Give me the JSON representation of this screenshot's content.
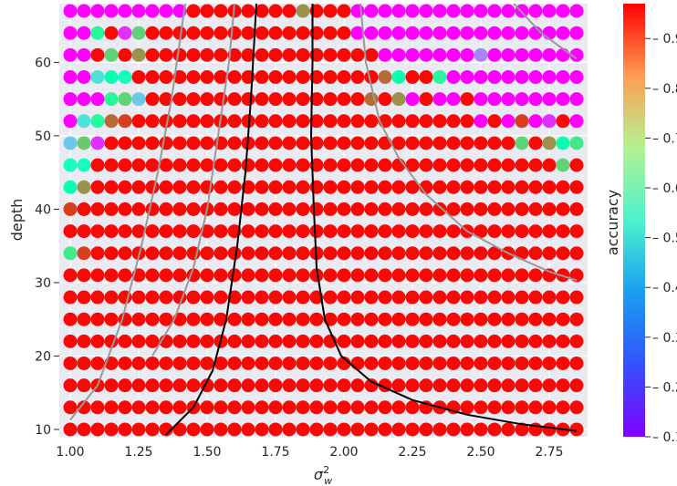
{
  "chart_data": {
    "type": "scatter",
    "title": "",
    "xlabel": "σ_w²",
    "xlabel_base": "σ",
    "xlabel_sup": "2",
    "xlabel_sub": "w",
    "ylabel": "depth",
    "colorbar_label": "accuracy",
    "xlim": [
      0.96,
      2.89
    ],
    "ylim": [
      9,
      68
    ],
    "grid": true,
    "x_ticks": [
      1.0,
      1.25,
      1.5,
      1.75,
      2.0,
      2.25,
      2.5,
      2.75
    ],
    "x_tick_labels": [
      "1.00",
      "1.25",
      "1.50",
      "1.75",
      "2.00",
      "2.25",
      "2.50",
      "2.75"
    ],
    "y_ticks": [
      10,
      20,
      30,
      40,
      50,
      60
    ],
    "y_tick_labels": [
      "10",
      "20",
      "30",
      "40",
      "50",
      "60"
    ],
    "colorbar_ticks": [
      0.1,
      0.2,
      0.3,
      0.4,
      0.5,
      0.6,
      0.7,
      0.8,
      0.9
    ],
    "colorbar_tick_labels": [
      "0.1",
      "0.2",
      "0.3",
      "0.4",
      "0.5",
      "0.6",
      "0.7",
      "0.8",
      "0.9"
    ],
    "colorbar_range": [
      0.1,
      0.97
    ],
    "colormap": "rainbow",
    "grid_x": [
      1.0,
      1.05,
      1.1,
      1.15,
      1.2,
      1.25,
      1.3,
      1.35,
      1.4,
      1.45,
      1.5,
      1.55,
      1.6,
      1.65,
      1.7,
      1.75,
      1.8,
      1.85,
      1.9,
      1.95,
      2.0,
      2.05,
      2.1,
      2.15,
      2.2,
      2.25,
      2.3,
      2.35,
      2.4,
      2.45,
      2.5,
      2.55,
      2.6,
      2.65,
      2.7,
      2.75,
      2.8,
      2.85
    ],
    "grid_depth": [
      10,
      13,
      16,
      19,
      22,
      25,
      28,
      31,
      34,
      37,
      40,
      43,
      46,
      49,
      52,
      55,
      58,
      61,
      64,
      67
    ],
    "accuracy_rows": [
      [
        0.96,
        0.96,
        0.96,
        0.96,
        0.96,
        0.96,
        0.96,
        0.96,
        0.96,
        0.96,
        0.96,
        0.96,
        0.96,
        0.96,
        0.96,
        0.96,
        0.96,
        0.96,
        0.96,
        0.96,
        0.96,
        0.96,
        0.96,
        0.96,
        0.96,
        0.96,
        0.96,
        0.96,
        0.96,
        0.96,
        0.96,
        0.96,
        0.96,
        0.96,
        0.96,
        0.96,
        0.96,
        0.96
      ],
      [
        0.96,
        0.96,
        0.96,
        0.96,
        0.96,
        0.96,
        0.96,
        0.96,
        0.96,
        0.96,
        0.96,
        0.96,
        0.96,
        0.96,
        0.96,
        0.96,
        0.96,
        0.96,
        0.96,
        0.96,
        0.96,
        0.96,
        0.96,
        0.96,
        0.96,
        0.96,
        0.96,
        0.96,
        0.96,
        0.96,
        0.96,
        0.96,
        0.96,
        0.96,
        0.96,
        0.96,
        0.96,
        0.96
      ],
      [
        0.96,
        0.96,
        0.96,
        0.96,
        0.96,
        0.96,
        0.96,
        0.96,
        0.96,
        0.96,
        0.96,
        0.96,
        0.96,
        0.96,
        0.96,
        0.96,
        0.96,
        0.96,
        0.96,
        0.96,
        0.96,
        0.96,
        0.96,
        0.96,
        0.96,
        0.96,
        0.96,
        0.96,
        0.96,
        0.96,
        0.96,
        0.96,
        0.96,
        0.96,
        0.96,
        0.96,
        0.96,
        0.96
      ],
      [
        0.96,
        0.96,
        0.96,
        0.96,
        0.96,
        0.96,
        0.96,
        0.96,
        0.96,
        0.96,
        0.96,
        0.96,
        0.96,
        0.96,
        0.96,
        0.96,
        0.96,
        0.96,
        0.96,
        0.96,
        0.96,
        0.96,
        0.96,
        0.96,
        0.96,
        0.96,
        0.96,
        0.96,
        0.96,
        0.96,
        0.96,
        0.96,
        0.96,
        0.96,
        0.96,
        0.96,
        0.96,
        0.96
      ],
      [
        0.96,
        0.96,
        0.96,
        0.96,
        0.96,
        0.96,
        0.96,
        0.96,
        0.96,
        0.96,
        0.96,
        0.96,
        0.96,
        0.96,
        0.96,
        0.96,
        0.96,
        0.96,
        0.96,
        0.96,
        0.96,
        0.96,
        0.96,
        0.96,
        0.96,
        0.96,
        0.96,
        0.96,
        0.96,
        0.96,
        0.96,
        0.96,
        0.96,
        0.96,
        0.96,
        0.96,
        0.96,
        0.96
      ],
      [
        0.96,
        0.96,
        0.96,
        0.96,
        0.96,
        0.96,
        0.96,
        0.96,
        0.96,
        0.96,
        0.96,
        0.96,
        0.96,
        0.96,
        0.96,
        0.96,
        0.96,
        0.96,
        0.96,
        0.96,
        0.96,
        0.96,
        0.96,
        0.96,
        0.96,
        0.96,
        0.96,
        0.96,
        0.96,
        0.96,
        0.96,
        0.96,
        0.96,
        0.96,
        0.96,
        0.96,
        0.96,
        0.96
      ],
      [
        0.96,
        0.96,
        0.96,
        0.96,
        0.96,
        0.96,
        0.96,
        0.96,
        0.96,
        0.96,
        0.96,
        0.96,
        0.96,
        0.96,
        0.96,
        0.96,
        0.96,
        0.96,
        0.96,
        0.96,
        0.96,
        0.96,
        0.96,
        0.96,
        0.96,
        0.96,
        0.96,
        0.96,
        0.96,
        0.96,
        0.96,
        0.96,
        0.96,
        0.96,
        0.96,
        0.96,
        0.96,
        0.96
      ],
      [
        0.96,
        0.96,
        0.96,
        0.96,
        0.96,
        0.96,
        0.96,
        0.96,
        0.96,
        0.96,
        0.96,
        0.96,
        0.96,
        0.96,
        0.96,
        0.96,
        0.96,
        0.96,
        0.96,
        0.96,
        0.96,
        0.96,
        0.96,
        0.96,
        0.96,
        0.96,
        0.96,
        0.96,
        0.96,
        0.96,
        0.96,
        0.96,
        0.96,
        0.96,
        0.96,
        0.96,
        0.96,
        0.96
      ],
      [
        0.65,
        0.9,
        0.96,
        0.96,
        0.96,
        0.96,
        0.96,
        0.96,
        0.96,
        0.96,
        0.96,
        0.96,
        0.96,
        0.96,
        0.96,
        0.96,
        0.96,
        0.96,
        0.96,
        0.96,
        0.96,
        0.96,
        0.96,
        0.96,
        0.96,
        0.96,
        0.96,
        0.96,
        0.96,
        0.96,
        0.96,
        0.96,
        0.96,
        0.96,
        0.96,
        0.96,
        0.96,
        0.96
      ],
      [
        0.96,
        0.96,
        0.96,
        0.96,
        0.96,
        0.96,
        0.96,
        0.96,
        0.96,
        0.96,
        0.96,
        0.96,
        0.96,
        0.96,
        0.96,
        0.96,
        0.96,
        0.96,
        0.96,
        0.96,
        0.96,
        0.96,
        0.96,
        0.96,
        0.96,
        0.96,
        0.96,
        0.96,
        0.96,
        0.96,
        0.96,
        0.96,
        0.96,
        0.96,
        0.96,
        0.96,
        0.96,
        0.96
      ],
      [
        0.9,
        0.96,
        0.96,
        0.96,
        0.96,
        0.96,
        0.96,
        0.96,
        0.96,
        0.96,
        0.96,
        0.96,
        0.96,
        0.96,
        0.96,
        0.96,
        0.96,
        0.96,
        0.96,
        0.96,
        0.96,
        0.96,
        0.96,
        0.96,
        0.96,
        0.96,
        0.96,
        0.96,
        0.96,
        0.96,
        0.96,
        0.96,
        0.96,
        0.96,
        0.96,
        0.96,
        0.96,
        0.96
      ],
      [
        0.55,
        0.8,
        0.96,
        0.96,
        0.96,
        0.96,
        0.96,
        0.96,
        0.96,
        0.96,
        0.96,
        0.96,
        0.96,
        0.96,
        0.96,
        0.96,
        0.96,
        0.96,
        0.96,
        0.96,
        0.96,
        0.96,
        0.96,
        0.96,
        0.96,
        0.96,
        0.96,
        0.96,
        0.96,
        0.96,
        0.96,
        0.96,
        0.96,
        0.96,
        0.96,
        0.96,
        0.96,
        0.96
      ],
      [
        0.5,
        0.5,
        0.96,
        0.96,
        0.96,
        0.96,
        0.96,
        0.96,
        0.96,
        0.96,
        0.96,
        0.96,
        0.96,
        0.96,
        0.96,
        0.96,
        0.96,
        0.96,
        0.96,
        0.96,
        0.96,
        0.96,
        0.96,
        0.96,
        0.96,
        0.96,
        0.96,
        0.96,
        0.96,
        0.96,
        0.96,
        0.96,
        0.96,
        0.96,
        0.96,
        0.96,
        0.7,
        0.96
      ],
      [
        0.35,
        0.72,
        0.15,
        0.96,
        0.96,
        0.96,
        0.96,
        0.96,
        0.96,
        0.96,
        0.96,
        0.96,
        0.96,
        0.96,
        0.96,
        0.96,
        0.96,
        0.96,
        0.96,
        0.96,
        0.96,
        0.96,
        0.96,
        0.96,
        0.96,
        0.96,
        0.96,
        0.96,
        0.96,
        0.96,
        0.96,
        0.96,
        0.96,
        0.7,
        0.96,
        0.8,
        0.55,
        0.65
      ],
      [
        0.1,
        0.4,
        0.6,
        0.85,
        0.9,
        0.96,
        0.96,
        0.96,
        0.96,
        0.96,
        0.96,
        0.96,
        0.96,
        0.96,
        0.96,
        0.96,
        0.96,
        0.96,
        0.96,
        0.96,
        0.96,
        0.96,
        0.96,
        0.96,
        0.96,
        0.96,
        0.96,
        0.96,
        0.96,
        0.96,
        0.1,
        0.96,
        0.1,
        0.9,
        0.1,
        0.15,
        0.96,
        0.1
      ],
      [
        0.1,
        0.1,
        0.1,
        0.6,
        0.7,
        0.35,
        0.96,
        0.96,
        0.96,
        0.96,
        0.96,
        0.96,
        0.96,
        0.96,
        0.96,
        0.96,
        0.96,
        0.96,
        0.96,
        0.96,
        0.96,
        0.96,
        0.85,
        0.96,
        0.8,
        0.1,
        0.96,
        0.1,
        0.1,
        0.96,
        0.1,
        0.1,
        0.1,
        0.1,
        0.1,
        0.1,
        0.1,
        0.1
      ],
      [
        0.1,
        0.1,
        0.4,
        0.55,
        0.5,
        0.96,
        0.96,
        0.96,
        0.96,
        0.96,
        0.96,
        0.96,
        0.96,
        0.96,
        0.96,
        0.96,
        0.96,
        0.96,
        0.96,
        0.96,
        0.96,
        0.96,
        0.96,
        0.85,
        0.55,
        0.96,
        0.96,
        0.6,
        0.1,
        0.1,
        0.1,
        0.1,
        0.1,
        0.1,
        0.1,
        0.1,
        0.1,
        0.1
      ],
      [
        0.1,
        0.1,
        0.96,
        0.7,
        0.96,
        0.8,
        0.96,
        0.96,
        0.96,
        0.96,
        0.96,
        0.96,
        0.96,
        0.96,
        0.96,
        0.96,
        0.96,
        0.96,
        0.96,
        0.96,
        0.96,
        0.96,
        0.96,
        0.1,
        0.1,
        0.1,
        0.1,
        0.1,
        0.1,
        0.1,
        0.25,
        0.1,
        0.1,
        0.1,
        0.1,
        0.1,
        0.1,
        0.1
      ],
      [
        0.1,
        0.1,
        0.6,
        0.96,
        0.15,
        0.7,
        0.96,
        0.96,
        0.96,
        0.96,
        0.96,
        0.96,
        0.96,
        0.96,
        0.96,
        0.96,
        0.96,
        0.96,
        0.96,
        0.96,
        0.96,
        0.1,
        0.1,
        0.1,
        0.1,
        0.1,
        0.1,
        0.1,
        0.1,
        0.1,
        0.1,
        0.1,
        0.1,
        0.1,
        0.1,
        0.1,
        0.1,
        0.1
      ],
      [
        0.1,
        0.1,
        0.1,
        0.1,
        0.1,
        0.1,
        0.1,
        0.1,
        0.1,
        0.96,
        0.96,
        0.96,
        0.96,
        0.96,
        0.96,
        0.96,
        0.96,
        0.8,
        0.96,
        0.96,
        0.96,
        0.1,
        0.1,
        0.1,
        0.1,
        0.1,
        0.1,
        0.1,
        0.1,
        0.1,
        0.1,
        0.1,
        0.1,
        0.1,
        0.1,
        0.1,
        0.1,
        0.1
      ]
    ],
    "contour_lines": [
      {
        "color": "#000000",
        "points": [
          [
            1.35,
            9.3
          ],
          [
            1.45,
            13
          ],
          [
            1.52,
            18
          ],
          [
            1.57,
            25
          ],
          [
            1.61,
            35
          ],
          [
            1.64,
            45
          ],
          [
            1.66,
            55
          ],
          [
            1.68,
            68
          ]
        ]
      },
      {
        "color": "#000000",
        "points": [
          [
            1.885,
            68
          ],
          [
            1.885,
            60
          ],
          [
            1.88,
            50
          ],
          [
            1.89,
            40
          ],
          [
            1.9,
            32
          ],
          [
            1.93,
            25
          ],
          [
            1.99,
            20
          ],
          [
            2.1,
            16.5
          ],
          [
            2.25,
            14
          ],
          [
            2.45,
            12
          ],
          [
            2.65,
            10.7
          ],
          [
            2.85,
            9.8
          ]
        ]
      },
      {
        "color": "#999999",
        "points": [
          [
            1.0,
            11.3
          ],
          [
            1.1,
            16
          ],
          [
            1.19,
            25
          ],
          [
            1.26,
            35
          ],
          [
            1.32,
            45
          ],
          [
            1.37,
            55
          ],
          [
            1.42,
            68
          ]
        ]
      },
      {
        "color": "#999999",
        "points": [
          [
            1.3,
            20
          ],
          [
            1.38,
            25
          ],
          [
            1.45,
            32
          ],
          [
            1.5,
            40
          ],
          [
            1.54,
            50
          ],
          [
            1.58,
            60
          ],
          [
            1.6,
            68
          ]
        ]
      },
      {
        "color": "#999999",
        "points": [
          [
            2.06,
            68
          ],
          [
            2.08,
            60
          ],
          [
            2.13,
            52
          ],
          [
            2.2,
            47
          ],
          [
            2.3,
            42
          ],
          [
            2.45,
            37
          ],
          [
            2.6,
            34
          ],
          [
            2.75,
            31.5
          ],
          [
            2.85,
            30.3
          ]
        ]
      },
      {
        "color": "#999999",
        "points": [
          [
            2.62,
            68
          ],
          [
            2.72,
            64
          ],
          [
            2.85,
            60.5
          ]
        ]
      }
    ]
  }
}
